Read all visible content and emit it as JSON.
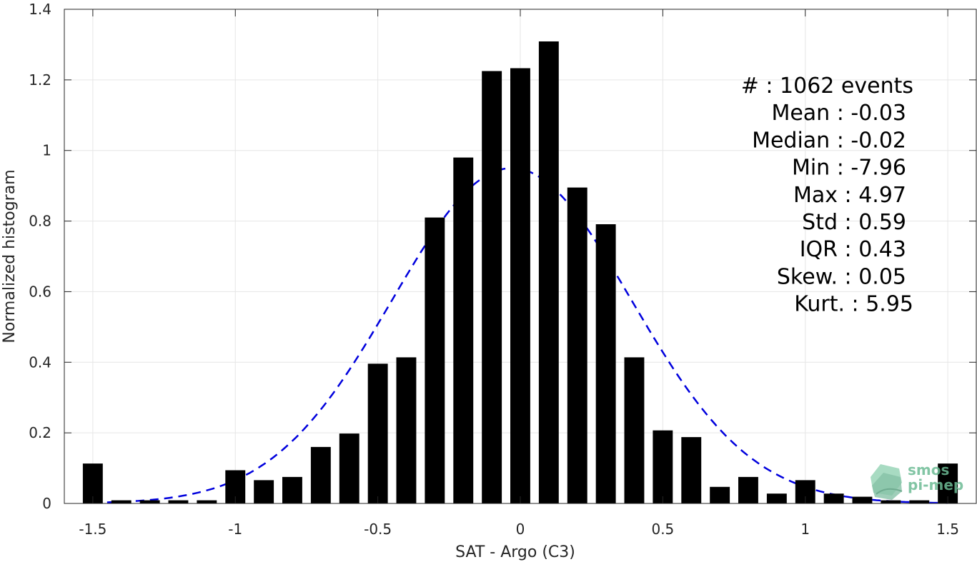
{
  "chart_data": {
    "type": "bar",
    "xlabel": "SAT - Argo (C3)",
    "ylabel": "Normalized histogram",
    "xlim": [
      -1.6,
      1.6
    ],
    "ylim": [
      0,
      1.4
    ],
    "grid": true,
    "xticks": [
      -1.5,
      -1,
      -0.5,
      0,
      0.5,
      1,
      1.5
    ],
    "xtick_labels": [
      "-1.5",
      "-1",
      "-0.5",
      "0",
      "0.5",
      "1",
      "1.5"
    ],
    "yticks": [
      0,
      0.2,
      0.4,
      0.6,
      0.8,
      1,
      1.2,
      1.4
    ],
    "ytick_labels": [
      "0",
      "0.2",
      "0.4",
      "0.6",
      "0.8",
      "1",
      "1.2",
      "1.4"
    ],
    "bar_color": "#000000",
    "bars": {
      "x": [
        -1.5,
        -1.4,
        -1.3,
        -1.2,
        -1.1,
        -1.0,
        -0.9,
        -0.8,
        -0.7,
        -0.6,
        -0.5,
        -0.4,
        -0.3,
        -0.2,
        -0.1,
        0.0,
        0.1,
        0.2,
        0.3,
        0.4,
        0.5,
        0.6,
        0.7,
        0.8,
        0.9,
        1.0,
        1.1,
        1.2,
        1.3,
        1.4,
        1.5
      ],
      "values": [
        0.113,
        0.009,
        0.009,
        0.009,
        0.009,
        0.094,
        0.066,
        0.075,
        0.16,
        0.198,
        0.396,
        0.414,
        0.81,
        0.98,
        1.225,
        1.233,
        1.309,
        0.895,
        0.791,
        0.414,
        0.207,
        0.188,
        0.047,
        0.075,
        0.028,
        0.066,
        0.028,
        0.019,
        0.009,
        0.009,
        0.113
      ]
    },
    "fit_curve": {
      "style": "dashed",
      "color": "#0000dd",
      "mean": -0.03,
      "std": 0.42,
      "peak": 0.95
    },
    "stats": [
      "#  : 1062 events",
      "Mean : -0.03",
      "Median : -0.02",
      "Min : -7.96",
      "Max : 4.97",
      "Std : 0.59",
      "IQR : 0.43",
      "Skew. : 0.05",
      "Kurt. : 5.95"
    ],
    "logo": {
      "line1": "smos",
      "line2": "pi-mep",
      "color": "#5fae8a"
    }
  }
}
